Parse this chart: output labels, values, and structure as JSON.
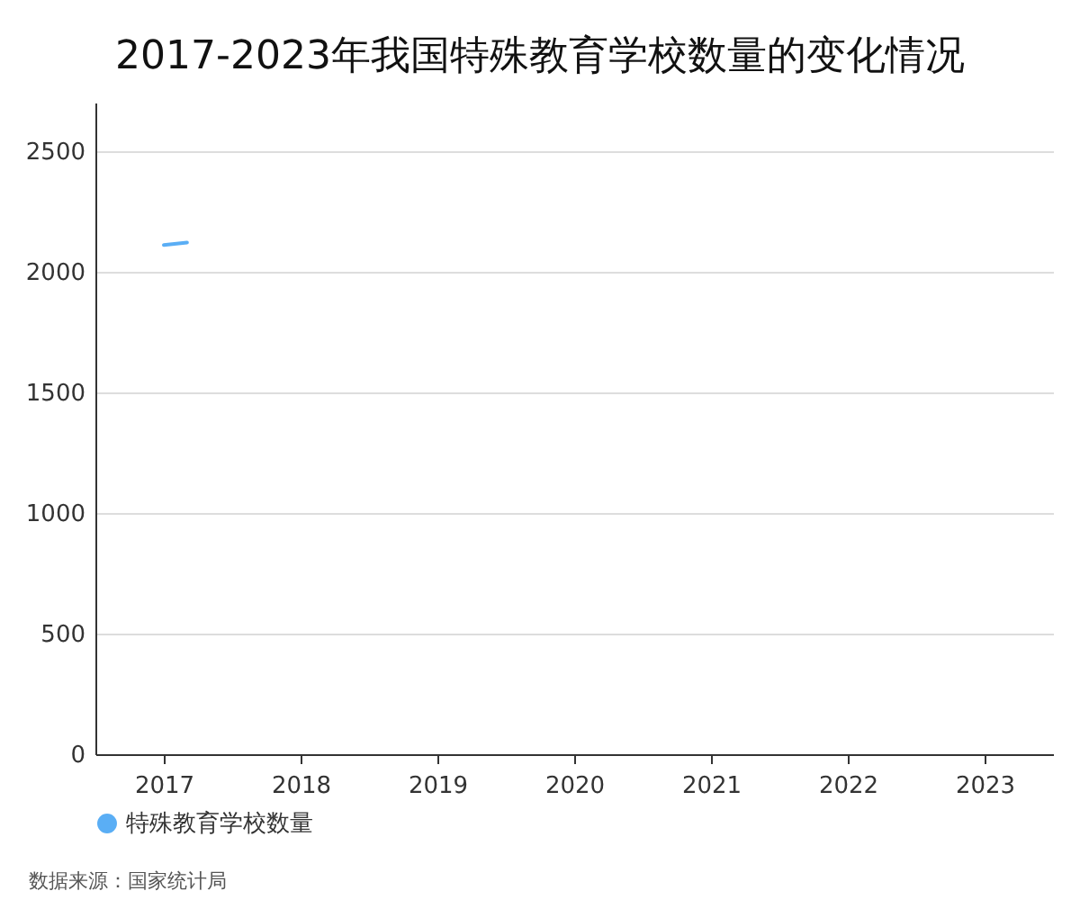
{
  "chart_data": {
    "type": "line",
    "title": "2017-2023年我国特殊教育学校数量的变化情况",
    "x": [
      2017,
      2017.17
    ],
    "series": [
      {
        "name": "特殊教育学校数量",
        "color": "#5aaef5",
        "values": [
          2110,
          2120
        ]
      }
    ],
    "xlim": [
      2016.5,
      2023.5
    ],
    "xticks": [
      2017,
      2018,
      2019,
      2020,
      2021,
      2022,
      2023
    ],
    "ylim": [
      0,
      2700
    ],
    "yticks": [
      0,
      500,
      1000,
      1500,
      2000,
      2500
    ],
    "grid": "y",
    "legend": "bottom",
    "annotations": [
      "数据来源：国家统计局"
    ]
  }
}
